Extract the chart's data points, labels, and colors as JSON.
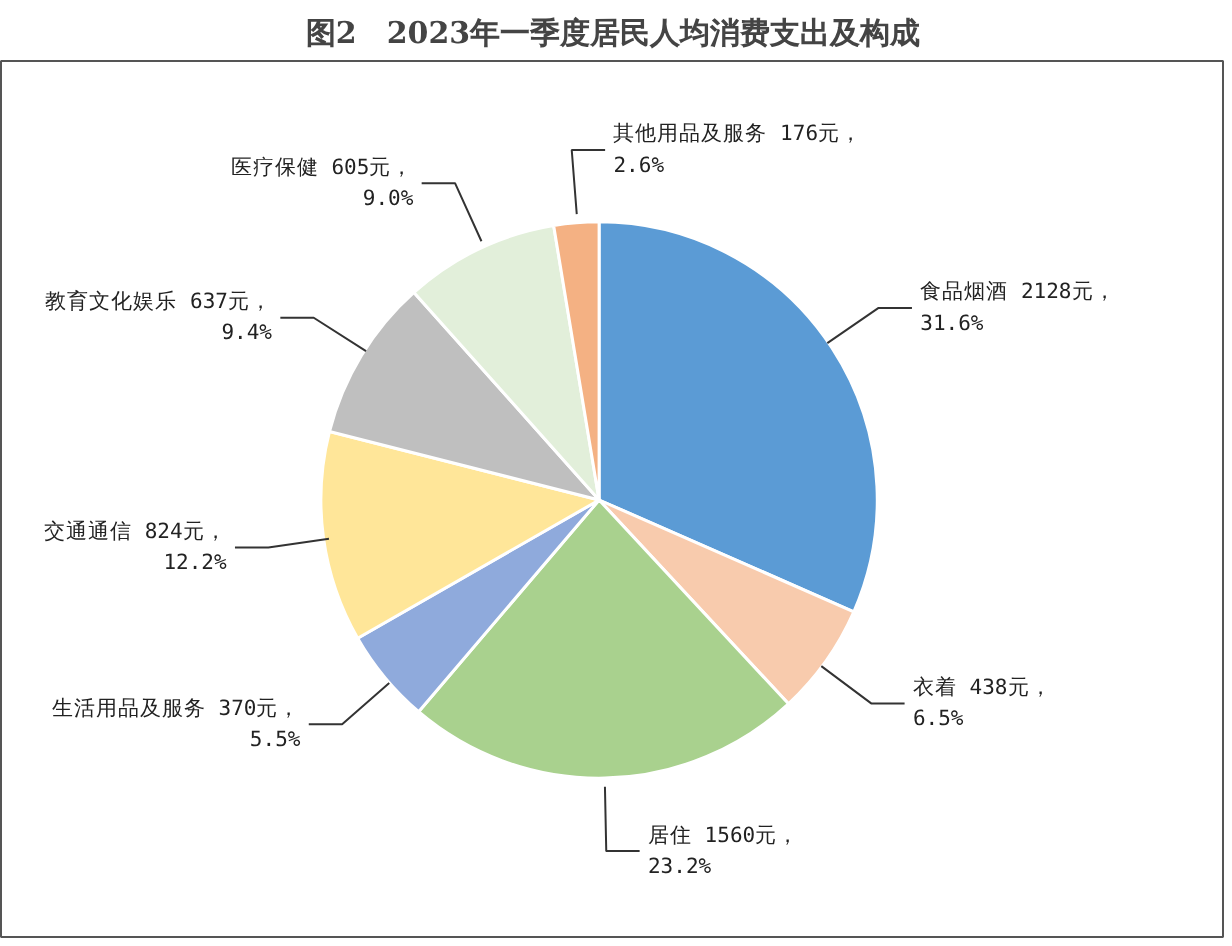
{
  "chart_data": {
    "type": "pie",
    "title": "图2　2023年一季度居民人均消费支出及构成",
    "categories": [
      "食品烟酒",
      "衣着",
      "居住",
      "生活用品及服务",
      "交通通信",
      "教育文化娱乐",
      "医疗保健",
      "其他用品及服务"
    ],
    "values": [
      2128,
      438,
      1560,
      370,
      824,
      637,
      605,
      176
    ],
    "value_labels": [
      "2128元，\n31.6%",
      "438元，\n6.5%",
      "1560元，\n23.2%",
      "370元，\n5.5%",
      "824元，\n12.2%",
      "637元，\n9.4%",
      "605元，\n9.0%",
      "176元，\n2.6%"
    ],
    "colors": [
      "#5b9bd5",
      "#f8cbad",
      "#a9d18e",
      "#8faadc",
      "#ffe699",
      "#bfbfbf",
      "#e2efda",
      "#f4b183"
    ]
  }
}
